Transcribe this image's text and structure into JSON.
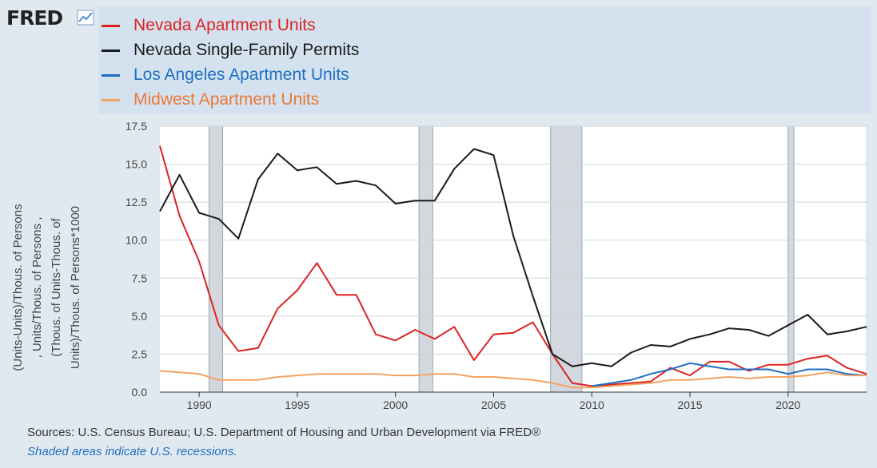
{
  "logo": {
    "text": "FRED"
  },
  "chart_data": {
    "type": "line",
    "ylabel": "(Units-Units)/Thous. of Persons , Units/Thous. of Persons , (Thous. of Units-Thous. of Units)/Thous. of Persons*1000",
    "xlim": [
      1988,
      2024
    ],
    "ylim": [
      0,
      17.5
    ],
    "yticks": [
      "0.0",
      "2.5",
      "5.0",
      "7.5",
      "10.0",
      "12.5",
      "15.0",
      "17.5"
    ],
    "xticks": [
      "1990",
      "1995",
      "2000",
      "2005",
      "2010",
      "2015",
      "2020"
    ],
    "legend_position": "top",
    "grid": true,
    "recessions": [
      [
        1990.5,
        1991.2
      ],
      [
        2001.2,
        2001.9
      ],
      [
        2007.9,
        2009.5
      ],
      [
        2020.0,
        2020.3
      ]
    ],
    "series": [
      {
        "name": "Nevada Apartment Units",
        "color": "#dc2323",
        "x": [
          1988,
          1989,
          1990,
          1991,
          1992,
          1993,
          1994,
          1995,
          1996,
          1997,
          1998,
          1999,
          2000,
          2001,
          2002,
          2003,
          2004,
          2005,
          2006,
          2007,
          2008,
          2009,
          2010,
          2011,
          2012,
          2013,
          2014,
          2015,
          2016,
          2017,
          2018,
          2019,
          2020,
          2021,
          2022,
          2023,
          2024
        ],
        "y": [
          16.2,
          11.6,
          8.6,
          4.4,
          2.7,
          2.9,
          5.5,
          6.7,
          8.5,
          6.4,
          6.4,
          3.8,
          3.4,
          4.1,
          3.5,
          4.3,
          2.1,
          3.8,
          3.9,
          4.6,
          2.5,
          0.6,
          0.4,
          0.5,
          0.6,
          0.7,
          1.6,
          1.1,
          2.0,
          2.0,
          1.4,
          1.8,
          1.8,
          2.2,
          2.4,
          1.6,
          1.2
        ]
      },
      {
        "name": "Nevada Single-Family Permits",
        "color": "#1a1a1a",
        "x": [
          1988,
          1989,
          1990,
          1991,
          1992,
          1993,
          1994,
          1995,
          1996,
          1997,
          1998,
          1999,
          2000,
          2001,
          2002,
          2003,
          2004,
          2005,
          2006,
          2007,
          2008,
          2009,
          2010,
          2011,
          2012,
          2013,
          2014,
          2015,
          2016,
          2017,
          2018,
          2019,
          2020,
          2021,
          2022,
          2023,
          2024
        ],
        "y": [
          11.9,
          14.3,
          11.8,
          11.4,
          10.1,
          14.0,
          15.7,
          14.6,
          14.8,
          13.7,
          13.9,
          13.6,
          12.4,
          12.6,
          12.6,
          14.7,
          16.0,
          15.6,
          10.3,
          6.3,
          2.5,
          1.7,
          1.9,
          1.7,
          2.6,
          3.1,
          3.0,
          3.5,
          3.8,
          4.2,
          4.1,
          3.7,
          4.4,
          5.1,
          3.8,
          4.0,
          4.3
        ]
      },
      {
        "name": "Los Angeles Apartment Units",
        "color": "#1f6fc4",
        "x": [
          2010,
          2011,
          2012,
          2013,
          2014,
          2015,
          2016,
          2017,
          2018,
          2019,
          2020,
          2021,
          2022,
          2023,
          2024
        ],
        "y": [
          0.4,
          0.6,
          0.8,
          1.2,
          1.5,
          1.9,
          1.7,
          1.5,
          1.5,
          1.5,
          1.2,
          1.5,
          1.5,
          1.2,
          1.1
        ]
      },
      {
        "name": "Midwest Apartment Units",
        "color": "#f4a261",
        "x": [
          1988,
          1989,
          1990,
          1991,
          1992,
          1993,
          1994,
          1995,
          1996,
          1997,
          1998,
          1999,
          2000,
          2001,
          2002,
          2003,
          2004,
          2005,
          2006,
          2007,
          2008,
          2009,
          2010,
          2011,
          2012,
          2013,
          2014,
          2015,
          2016,
          2017,
          2018,
          2019,
          2020,
          2021,
          2022,
          2023,
          2024
        ],
        "y": [
          1.4,
          1.3,
          1.2,
          0.8,
          0.8,
          0.8,
          1.0,
          1.1,
          1.2,
          1.2,
          1.2,
          1.2,
          1.1,
          1.1,
          1.2,
          1.2,
          1.0,
          1.0,
          0.9,
          0.8,
          0.6,
          0.3,
          0.3,
          0.4,
          0.5,
          0.6,
          0.8,
          0.8,
          0.9,
          1.0,
          0.9,
          1.0,
          1.0,
          1.1,
          1.3,
          1.1,
          1.1
        ]
      }
    ]
  },
  "footer": {
    "source": "Sources: U.S. Census Bureau; U.S. Department of Housing and Urban Development via FRED®",
    "note": "Shaded areas indicate U.S. recessions."
  }
}
